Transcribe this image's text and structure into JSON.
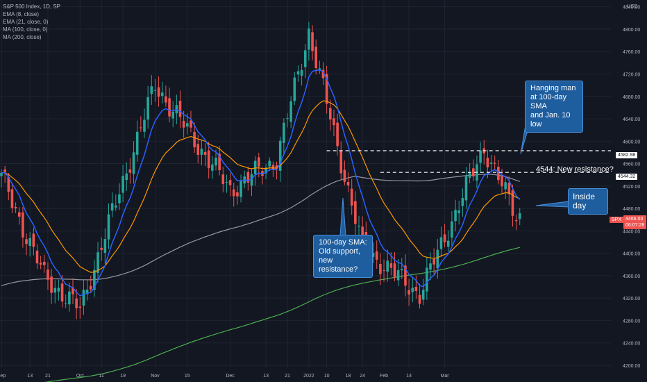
{
  "legend": {
    "title": "S&P 500 Index, 1D, SP",
    "indicators": [
      "EMA (8, close)",
      "EMA (21, close, 0)",
      "MA (100, close, 0)",
      "MA (200, close)"
    ]
  },
  "chart_data": {
    "type": "candlestick",
    "currency_label": "USD",
    "y_ticks": [
      4200,
      4240,
      4280,
      4320,
      4360,
      4400,
      4440,
      4480,
      4520,
      4560,
      4600,
      4640,
      4680,
      4720,
      4760,
      4800,
      4840
    ],
    "ylim": [
      4195,
      4852
    ],
    "x_ticks": [
      "Sep",
      "13",
      "21",
      "Oct",
      "11",
      "19",
      "Nov",
      "15",
      "Dec",
      "13",
      "21",
      "2022",
      "10",
      "18",
      "24",
      "Feb",
      "14",
      "Mar"
    ],
    "bars": 146,
    "colors": {
      "up": "#26a69a",
      "down": "#ef5350",
      "ema8": "#2962ff",
      "ema21": "#ff9800",
      "ma100": "#9598a1",
      "ma200": "#4caf50",
      "grid": "#1f2433",
      "axis_text": "#b2b5be",
      "background": "#131722"
    },
    "key_points": [
      {
        "date": "Sep 02",
        "close": 4536
      },
      {
        "date": "Sep 20",
        "close": 4358
      },
      {
        "date": "Oct 04",
        "close": 4300
      },
      {
        "date": "Nov 02",
        "close": 4700
      },
      {
        "date": "Dec 01",
        "close": 4513
      },
      {
        "date": "Dec 20",
        "close": 4568
      },
      {
        "date": "Jan 03",
        "close": 4796
      },
      {
        "date": "Jan 24",
        "close": 4410
      },
      {
        "date": "Jan 27",
        "close": 4327
      },
      {
        "date": "Feb 02",
        "close": 4589
      },
      {
        "date": "Feb 08",
        "close": 4466
      }
    ],
    "horizontal_levels": [
      4582.98,
      4544.32
    ],
    "annotations": {
      "hanging_man": "Hanging man\nat 100-day SMA\nand Jan. 10 low",
      "new_resistance": "4544: New resistance?",
      "inside_day": "Inside day",
      "sma100_note": "100-day SMA:\nOld support,\nnew resistance?"
    },
    "price_tags": {
      "level1": "4582.98",
      "level2": "4544.32",
      "symbol": "SPX",
      "last": "4466.03",
      "countdown": "06:07:28"
    }
  }
}
